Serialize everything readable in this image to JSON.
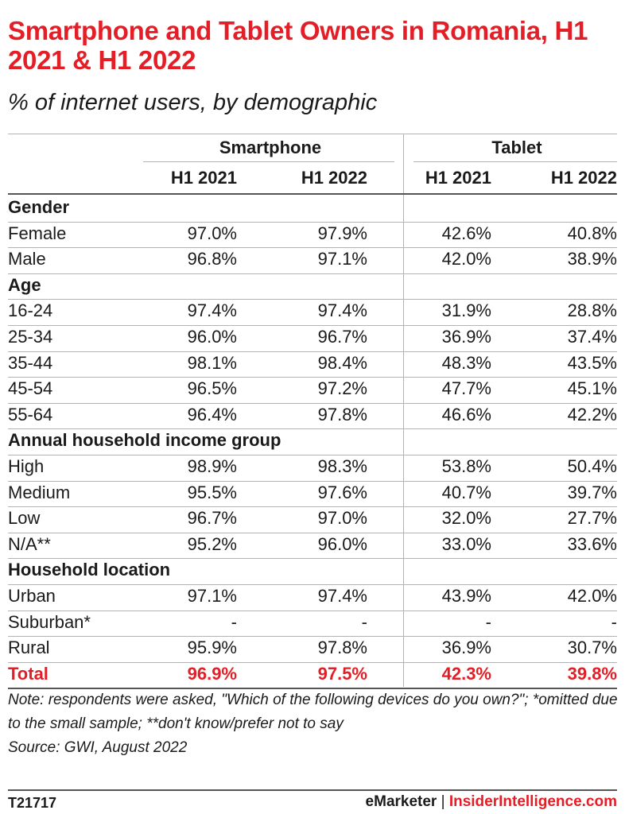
{
  "title": "Smartphone and Tablet Owners in Romania, H1 2021 & H1 2022",
  "subtitle": "% of internet users, by demographic",
  "groups": [
    "Smartphone",
    "Tablet"
  ],
  "columns": [
    "H1 2021",
    "H1 2022",
    "H1 2021",
    "H1 2022"
  ],
  "chart_data": {
    "type": "table",
    "title": "Smartphone and Tablet Owners in Romania, H1 2021 & H1 2022",
    "subtitle": "% of internet users, by demographic",
    "column_groups": [
      {
        "name": "Smartphone",
        "columns": [
          "H1 2021",
          "H1 2022"
        ]
      },
      {
        "name": "Tablet",
        "columns": [
          "H1 2021",
          "H1 2022"
        ]
      }
    ],
    "rows": [
      {
        "kind": "section",
        "label": "Gender"
      },
      {
        "kind": "data",
        "label": "Female",
        "values": [
          "97.0%",
          "97.9%",
          "42.6%",
          "40.8%"
        ]
      },
      {
        "kind": "data",
        "label": "Male",
        "values": [
          "96.8%",
          "97.1%",
          "42.0%",
          "38.9%"
        ]
      },
      {
        "kind": "section",
        "label": "Age"
      },
      {
        "kind": "data",
        "label": "16-24",
        "values": [
          "97.4%",
          "97.4%",
          "31.9%",
          "28.8%"
        ]
      },
      {
        "kind": "data",
        "label": "25-34",
        "values": [
          "96.0%",
          "96.7%",
          "36.9%",
          "37.4%"
        ]
      },
      {
        "kind": "data",
        "label": "35-44",
        "values": [
          "98.1%",
          "98.4%",
          "48.3%",
          "43.5%"
        ]
      },
      {
        "kind": "data",
        "label": "45-54",
        "values": [
          "96.5%",
          "97.2%",
          "47.7%",
          "45.1%"
        ]
      },
      {
        "kind": "data",
        "label": "55-64",
        "values": [
          "96.4%",
          "97.8%",
          "46.6%",
          "42.2%"
        ]
      },
      {
        "kind": "section",
        "label": "Annual household income group"
      },
      {
        "kind": "data",
        "label": "High",
        "values": [
          "98.9%",
          "98.3%",
          "53.8%",
          "50.4%"
        ]
      },
      {
        "kind": "data",
        "label": "Medium",
        "values": [
          "95.5%",
          "97.6%",
          "40.7%",
          "39.7%"
        ]
      },
      {
        "kind": "data",
        "label": "Low",
        "values": [
          "96.7%",
          "97.0%",
          "32.0%",
          "27.7%"
        ]
      },
      {
        "kind": "data",
        "label": "N/A**",
        "values": [
          "95.2%",
          "96.0%",
          "33.0%",
          "33.6%"
        ]
      },
      {
        "kind": "section",
        "label": "Household location"
      },
      {
        "kind": "data",
        "label": "Urban",
        "values": [
          "97.1%",
          "97.4%",
          "43.9%",
          "42.0%"
        ]
      },
      {
        "kind": "data",
        "label": "Suburban*",
        "values": [
          "-",
          "-",
          "-",
          "-"
        ]
      },
      {
        "kind": "data",
        "label": "Rural",
        "values": [
          "95.9%",
          "97.8%",
          "36.9%",
          "30.7%"
        ]
      },
      {
        "kind": "total",
        "label": "Total",
        "values": [
          "96.9%",
          "97.5%",
          "42.3%",
          "39.8%"
        ]
      }
    ]
  },
  "note": "Note: respondents were asked, \"Which of the following devices do you own?\"; *omitted due to the small sample; **don't know/prefer not to say",
  "source": "Source: GWI, August 2022",
  "footer": {
    "id": "T21717",
    "brand_left": "eMarketer",
    "separator": "|",
    "brand_right": "InsiderIntelligence.com"
  },
  "colors": {
    "accent": "#e41e26",
    "text": "#1a1a1a",
    "rule": "#b3b3b3"
  }
}
